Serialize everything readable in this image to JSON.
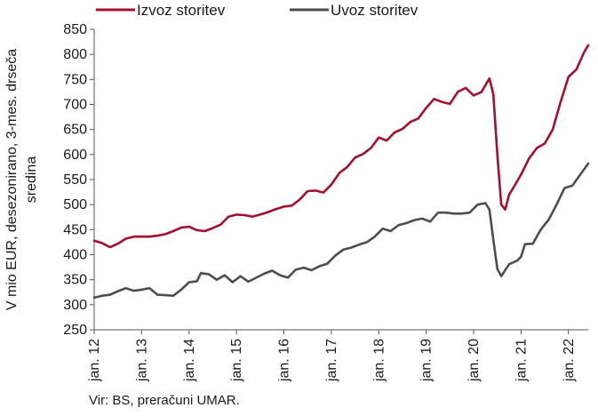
{
  "chart_data": {
    "type": "line",
    "title": "",
    "ylabel_lines": [
      "V mio EUR, desezonirano, 3-mes. drseča",
      "sredina"
    ],
    "ylim": [
      250,
      850
    ],
    "yticks": [
      250,
      300,
      350,
      400,
      450,
      500,
      550,
      600,
      650,
      700,
      750,
      800,
      850
    ],
    "x_start": "2012-01",
    "x_end": "2022-06",
    "xticks": [
      {
        "date": "2012-01",
        "label": "jan. 12"
      },
      {
        "date": "2013-01",
        "label": "jan. 13"
      },
      {
        "date": "2014-01",
        "label": "jan. 14"
      },
      {
        "date": "2015-01",
        "label": "jan. 15"
      },
      {
        "date": "2016-01",
        "label": "jan. 16"
      },
      {
        "date": "2017-01",
        "label": "jan. 17"
      },
      {
        "date": "2018-01",
        "label": "jan. 18"
      },
      {
        "date": "2019-01",
        "label": "jan. 19"
      },
      {
        "date": "2020-01",
        "label": "jan. 20"
      },
      {
        "date": "2021-01",
        "label": "jan. 21"
      },
      {
        "date": "2022-01",
        "label": "jan. 22"
      }
    ],
    "legend_position": "top",
    "grid": false,
    "series": [
      {
        "name": "Izvoz storitev",
        "color": "#a50f2d",
        "values": [
          [
            "2012-01",
            428
          ],
          [
            "2012-03",
            423
          ],
          [
            "2012-05",
            415
          ],
          [
            "2012-07",
            422
          ],
          [
            "2012-09",
            432
          ],
          [
            "2012-11",
            436
          ],
          [
            "2013-01",
            436
          ],
          [
            "2013-03",
            436
          ],
          [
            "2013-05",
            438
          ],
          [
            "2013-07",
            441
          ],
          [
            "2013-09",
            447
          ],
          [
            "2013-11",
            454
          ],
          [
            "2014-01",
            456
          ],
          [
            "2014-03",
            449
          ],
          [
            "2014-05",
            447
          ],
          [
            "2014-07",
            453
          ],
          [
            "2014-09",
            460
          ],
          [
            "2014-11",
            476
          ],
          [
            "2015-01",
            480
          ],
          [
            "2015-03",
            479
          ],
          [
            "2015-05",
            476
          ],
          [
            "2015-07",
            480
          ],
          [
            "2015-09",
            485
          ],
          [
            "2015-11",
            491
          ],
          [
            "2016-01",
            496
          ],
          [
            "2016-03",
            498
          ],
          [
            "2016-05",
            510
          ],
          [
            "2016-07",
            527
          ],
          [
            "2016-09",
            528
          ],
          [
            "2016-11",
            524
          ],
          [
            "2017-01",
            540
          ],
          [
            "2017-03",
            563
          ],
          [
            "2017-05",
            575
          ],
          [
            "2017-07",
            594
          ],
          [
            "2017-09",
            601
          ],
          [
            "2017-11",
            613
          ],
          [
            "2018-01",
            634
          ],
          [
            "2018-03",
            628
          ],
          [
            "2018-05",
            644
          ],
          [
            "2018-07",
            651
          ],
          [
            "2018-09",
            665
          ],
          [
            "2018-11",
            672
          ],
          [
            "2019-01",
            693
          ],
          [
            "2019-03",
            711
          ],
          [
            "2019-05",
            705
          ],
          [
            "2019-07",
            701
          ],
          [
            "2019-09",
            725
          ],
          [
            "2019-11",
            733
          ],
          [
            "2020-01",
            718
          ],
          [
            "2020-03",
            725
          ],
          [
            "2020-05",
            752
          ],
          [
            "2020-06",
            720
          ],
          [
            "2020-07",
            600
          ],
          [
            "2020-08",
            500
          ],
          [
            "2020-09",
            490
          ],
          [
            "2020-10",
            520
          ],
          [
            "2020-11",
            533
          ],
          [
            "2021-01",
            560
          ],
          [
            "2021-03",
            592
          ],
          [
            "2021-05",
            613
          ],
          [
            "2021-07",
            622
          ],
          [
            "2021-09",
            650
          ],
          [
            "2021-11",
            705
          ],
          [
            "2022-01",
            755
          ],
          [
            "2022-03",
            770
          ],
          [
            "2022-05",
            805
          ],
          [
            "2022-06",
            818
          ]
        ]
      },
      {
        "name": "Uvoz storitev",
        "color": "#4d4d4d",
        "values": [
          [
            "2012-01",
            314
          ],
          [
            "2012-03",
            318
          ],
          [
            "2012-05",
            320
          ],
          [
            "2012-07",
            327
          ],
          [
            "2012-09",
            333
          ],
          [
            "2012-11",
            328
          ],
          [
            "2013-01",
            330
          ],
          [
            "2013-03",
            333
          ],
          [
            "2013-05",
            320
          ],
          [
            "2013-07",
            319
          ],
          [
            "2013-09",
            318
          ],
          [
            "2013-11",
            330
          ],
          [
            "2014-01",
            345
          ],
          [
            "2014-03",
            347
          ],
          [
            "2014-04",
            363
          ],
          [
            "2014-06",
            361
          ],
          [
            "2014-08",
            350
          ],
          [
            "2014-10",
            359
          ],
          [
            "2014-12",
            345
          ],
          [
            "2015-02",
            357
          ],
          [
            "2015-04",
            346
          ],
          [
            "2015-06",
            354
          ],
          [
            "2015-08",
            362
          ],
          [
            "2015-10",
            368
          ],
          [
            "2015-12",
            359
          ],
          [
            "2016-02",
            354
          ],
          [
            "2016-04",
            370
          ],
          [
            "2016-06",
            374
          ],
          [
            "2016-08",
            369
          ],
          [
            "2016-10",
            377
          ],
          [
            "2016-12",
            382
          ],
          [
            "2017-02",
            398
          ],
          [
            "2017-04",
            410
          ],
          [
            "2017-06",
            414
          ],
          [
            "2017-08",
            420
          ],
          [
            "2017-10",
            425
          ],
          [
            "2017-12",
            436
          ],
          [
            "2018-02",
            452
          ],
          [
            "2018-04",
            447
          ],
          [
            "2018-06",
            459
          ],
          [
            "2018-08",
            463
          ],
          [
            "2018-10",
            469
          ],
          [
            "2018-12",
            472
          ],
          [
            "2019-02",
            466
          ],
          [
            "2019-04",
            484
          ],
          [
            "2019-06",
            484
          ],
          [
            "2019-08",
            482
          ],
          [
            "2019-10",
            482
          ],
          [
            "2019-12",
            484
          ],
          [
            "2020-02",
            500
          ],
          [
            "2020-04",
            503
          ],
          [
            "2020-05",
            490
          ],
          [
            "2020-06",
            430
          ],
          [
            "2020-07",
            372
          ],
          [
            "2020-08",
            357
          ],
          [
            "2020-10",
            381
          ],
          [
            "2020-12",
            388
          ],
          [
            "2021-01",
            396
          ],
          [
            "2021-02",
            421
          ],
          [
            "2021-04",
            422
          ],
          [
            "2021-06",
            450
          ],
          [
            "2021-08",
            470
          ],
          [
            "2021-10",
            500
          ],
          [
            "2021-12",
            533
          ],
          [
            "2022-02",
            538
          ],
          [
            "2022-04",
            560
          ],
          [
            "2022-06",
            582
          ]
        ]
      }
    ]
  },
  "source": "Vir: BS, preračuni UMAR."
}
